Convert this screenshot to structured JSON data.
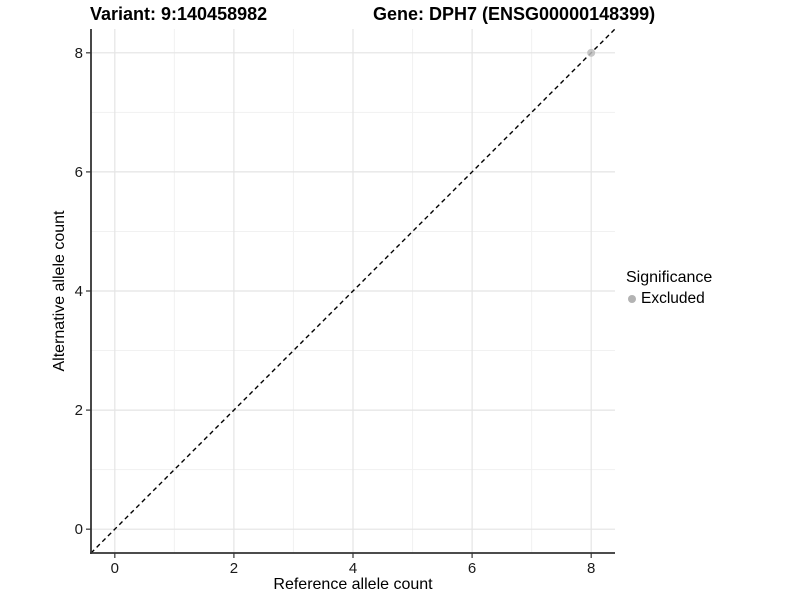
{
  "titles": {
    "variant": "Variant: 9:140458982",
    "gene": "Gene: DPH7 (ENSG00000148399)"
  },
  "chart_data": {
    "type": "scatter",
    "title_left": "Variant: 9:140458982",
    "title_right": "Gene: DPH7 (ENSG00000148399)",
    "xlabel": "Reference allele count",
    "ylabel": "Alternative allele count",
    "xlim": [
      -0.4,
      8.4
    ],
    "ylim": [
      -0.4,
      8.4
    ],
    "x_breaks": [
      0,
      2,
      4,
      6,
      8
    ],
    "y_breaks": [
      0,
      2,
      4,
      6,
      8
    ],
    "x_minor_breaks": [
      1,
      3,
      5,
      7
    ],
    "y_minor_breaks": [
      1,
      3,
      5,
      7
    ],
    "grid": true,
    "reference_line": {
      "type": "identity",
      "equation": "y = x",
      "style": "dashed",
      "color": "#000000"
    },
    "series": [
      {
        "name": "Excluded",
        "color": "#bdbdbd",
        "points": [
          {
            "x": 8,
            "y": 8
          }
        ]
      }
    ],
    "legend": {
      "position": "right",
      "title": "Significance",
      "items": [
        {
          "label": "Excluded",
          "color": "#b3b3b3"
        }
      ]
    }
  },
  "colors": {
    "background": "#ffffff",
    "grid_major": "#e4e4e4",
    "grid_minor": "#f1f1f1",
    "axis_line": "#333333",
    "tick_text": "#1a1a1a",
    "point_fill": "#bdbdbd",
    "legend_key": "#b3b3b3"
  }
}
